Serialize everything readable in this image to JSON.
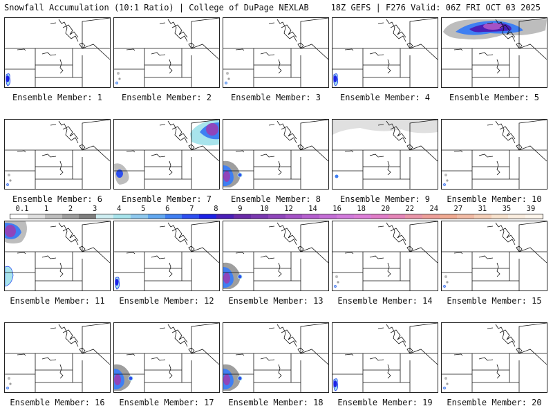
{
  "header": {
    "title": "Snowfall Accumulation (10:1 Ratio) | College of DuPage NEXLAB",
    "run_info": "18Z GEFS | F276 Valid: 06Z FRI OCT 03 2025"
  },
  "colors": {
    "background": "#ffffff",
    "borders": "#222222",
    "snow_scale": [
      "#ffffff",
      "#e0e0e0",
      "#bdbdbd",
      "#9e9e9e",
      "#7f7f7f",
      "#cfeef2",
      "#a8e4ec",
      "#8fc9ef",
      "#62a8f0",
      "#3f7ff2",
      "#2d4ff0",
      "#1c22e6",
      "#4a1fb8",
      "#6a2aa8",
      "#7a38b0",
      "#8f45bb",
      "#a452c6",
      "#b660cf",
      "#c46ed6",
      "#d27bdc",
      "#dd7fd8",
      "#e07dc8",
      "#e585b8",
      "#e995a8",
      "#ed9f99",
      "#f0aa92",
      "#f2bca6",
      "#f5cfb8",
      "#f8e2cd",
      "#fbeee0",
      "#fdf6ec"
    ]
  },
  "scale": {
    "labels": [
      "0.1",
      "1",
      "2",
      "3",
      "4",
      "5",
      "6",
      "7",
      "8",
      "9",
      "10",
      "12",
      "14",
      "16",
      "18",
      "20",
      "22",
      "24",
      "27",
      "31",
      "35",
      "39"
    ]
  },
  "members": [
    {
      "label": "Ensemble Member: 1",
      "snow": "blue-sw"
    },
    {
      "label": "Ensemble Member: 2",
      "snow": "specks-sw"
    },
    {
      "label": "Ensemble Member: 3",
      "snow": "specks-sw"
    },
    {
      "label": "Ensemble Member: 4",
      "snow": "blue-sw"
    },
    {
      "label": "Ensemble Member: 5",
      "snow": "heavy-north"
    },
    {
      "label": "Ensemble Member: 6",
      "snow": "specks-sw"
    },
    {
      "label": "Ensemble Member: 7",
      "snow": "heavy-ne"
    },
    {
      "label": "Ensemble Member: 8",
      "snow": "heavy-sw"
    },
    {
      "label": "Ensemble Member: 9",
      "snow": "gray-north"
    },
    {
      "label": "Ensemble Member: 10",
      "snow": "specks-sw"
    },
    {
      "label": "Ensemble Member: 11",
      "snow": "heavy-nw"
    },
    {
      "label": "Ensemble Member: 12",
      "snow": "blue-sw"
    },
    {
      "label": "Ensemble Member: 13",
      "snow": "heavy-sw"
    },
    {
      "label": "Ensemble Member: 14",
      "snow": "specks-sw"
    },
    {
      "label": "Ensemble Member: 15",
      "snow": "specks-sw"
    },
    {
      "label": "Ensemble Member: 16",
      "snow": "specks-sw"
    },
    {
      "label": "Ensemble Member: 17",
      "snow": "heavy-sw"
    },
    {
      "label": "Ensemble Member: 18",
      "snow": "heavy-sw"
    },
    {
      "label": "Ensemble Member: 19",
      "snow": "blue-sw"
    },
    {
      "label": "Ensemble Member: 20",
      "snow": "specks-sw"
    }
  ]
}
